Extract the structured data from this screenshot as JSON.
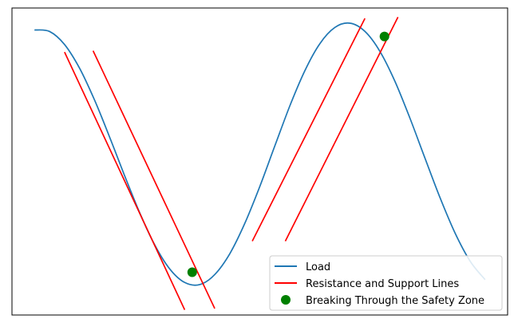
{
  "chart_data": {
    "type": "line",
    "title": "",
    "xlabel": "",
    "ylabel": "",
    "axes_visible": false,
    "grid": false,
    "legend_placement": "lower right",
    "xlim": [
      -0.15,
      3.15
    ],
    "ylim": [
      -1.25,
      1.12
    ],
    "series": [
      {
        "name": "Load",
        "kind": "line",
        "color": "#1f77b4",
        "x": [
          0.0,
          0.1,
          0.2,
          0.3,
          0.4,
          0.5,
          0.6,
          0.7,
          0.8,
          0.9,
          1.0,
          1.1,
          1.2,
          1.3,
          1.4,
          1.5,
          1.6,
          1.7,
          1.8,
          1.9,
          2.0,
          2.1,
          2.2,
          2.3,
          2.4,
          2.5,
          2.6,
          2.7,
          2.8,
          2.9,
          3.0
        ],
        "y": [
          0.95,
          0.939,
          0.838,
          0.655,
          0.409,
          0.124,
          -0.174,
          -0.46,
          -0.708,
          -0.894,
          -0.999,
          -1.015,
          -0.938,
          -0.777,
          -0.543,
          -0.258,
          0.055,
          0.364,
          0.636,
          0.845,
          0.97,
          1.003,
          0.939,
          0.785,
          0.553,
          0.268,
          -0.04,
          -0.344,
          -0.617,
          -0.834,
          -0.977
        ]
      },
      {
        "name": "Resistance and Support Lines",
        "kind": "segments",
        "color": "#ff0000",
        "segments": [
          {
            "x": [
              0.2,
              1.0
            ],
            "y": [
              0.78,
              -1.21
            ]
          },
          {
            "x": [
              0.39,
              1.2
            ],
            "y": [
              0.79,
              -1.2
            ]
          },
          {
            "x": [
              1.45,
              2.2
            ],
            "y": [
              -0.68,
              1.04
            ]
          },
          {
            "x": [
              1.67,
              2.42
            ],
            "y": [
              -0.68,
              1.05
            ]
          }
        ]
      },
      {
        "name": "Breaking Through the Safety Zone",
        "kind": "scatter",
        "color": "#008000",
        "x": [
          1.05,
          2.33
        ],
        "y": [
          -0.92,
          0.9
        ]
      }
    ]
  }
}
